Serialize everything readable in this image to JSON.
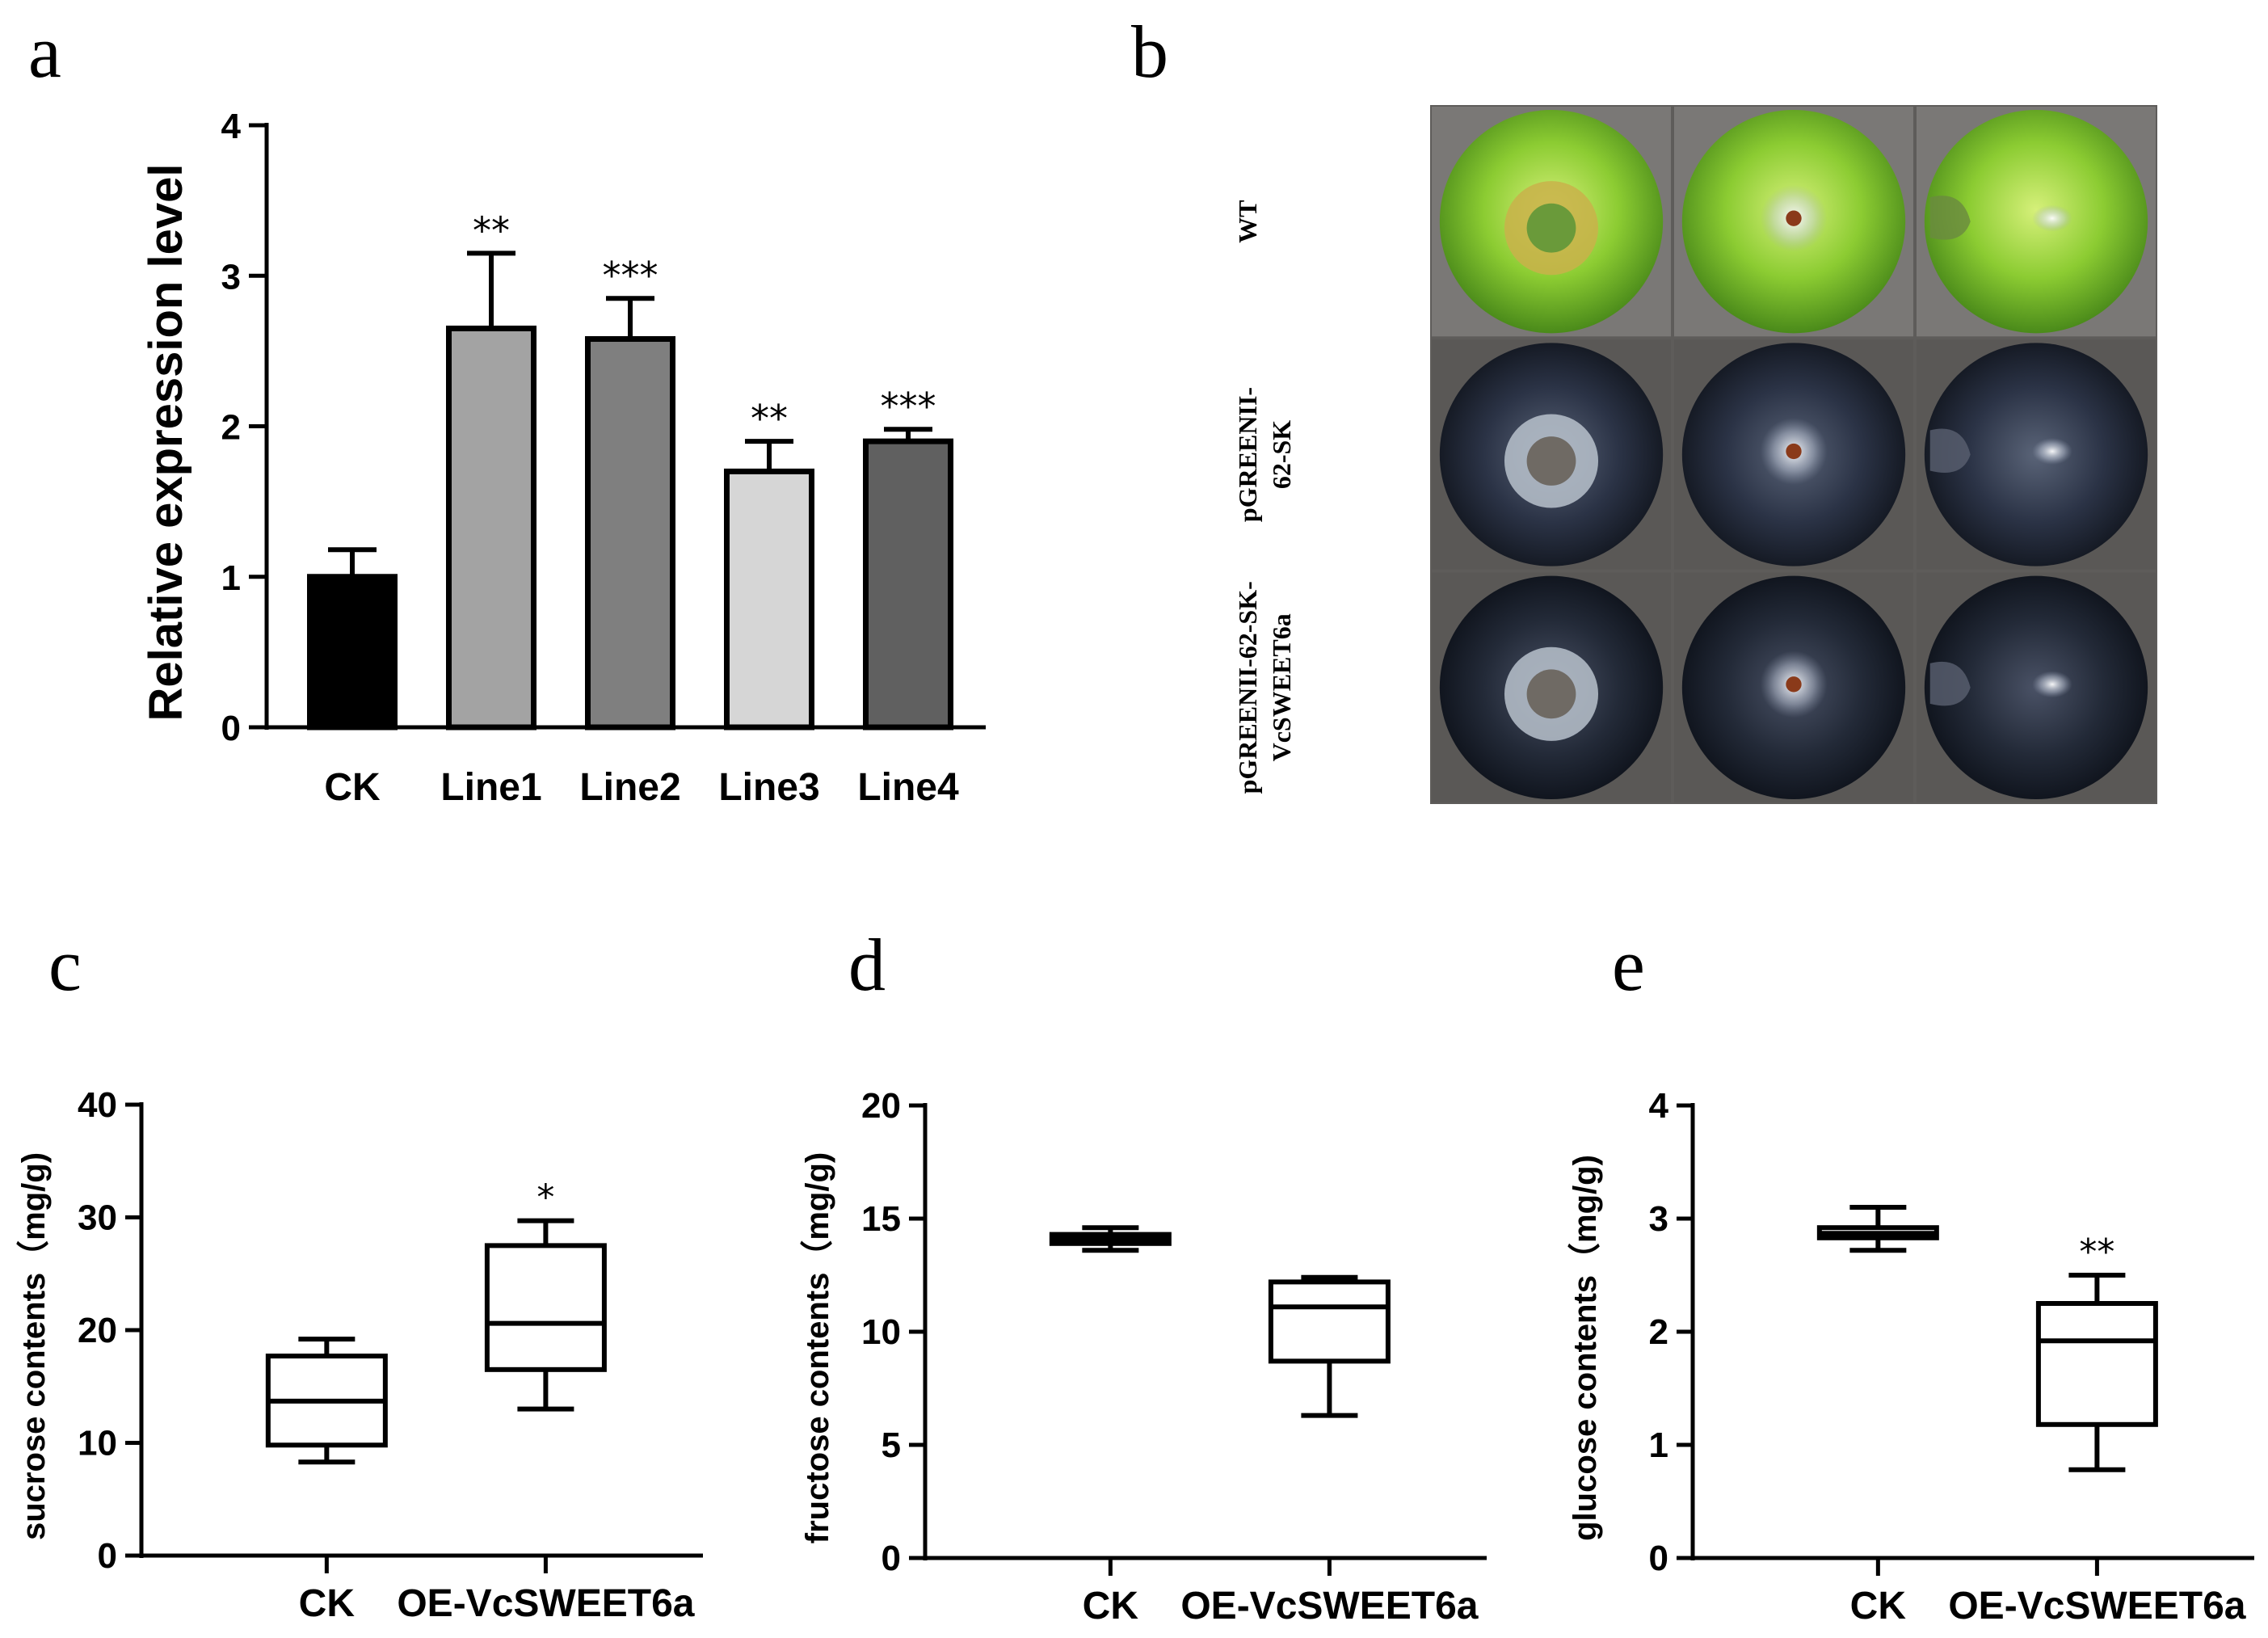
{
  "panels": {
    "a": "a",
    "b": "b",
    "c": "c",
    "d": "d",
    "e": "e"
  },
  "chart_data": [
    {
      "panel": "a",
      "type": "bar",
      "title": "",
      "xlabel": "",
      "ylabel": "Relative expression level",
      "ylim": [
        0,
        4
      ],
      "yticks": [
        0,
        1,
        2,
        3,
        4
      ],
      "categories": [
        "CK",
        "Line1",
        "Line2",
        "Line3",
        "Line4"
      ],
      "values": [
        1.0,
        2.65,
        2.58,
        1.7,
        1.9
      ],
      "errors": [
        0.18,
        0.5,
        0.27,
        0.2,
        0.08
      ],
      "significance": [
        "",
        "**",
        "***",
        "**",
        "***"
      ],
      "colors": [
        "#000000",
        "#a3a3a3",
        "#7f7f7f",
        "#d6d6d6",
        "#606060"
      ]
    },
    {
      "panel": "c",
      "type": "box",
      "title": "",
      "xlabel": "",
      "ylabel": "sucrose contents（mg/g)",
      "ylim": [
        0,
        40
      ],
      "yticks": [
        0,
        10,
        20,
        30,
        40
      ],
      "categories": [
        "CK",
        "OE-VcSWEET6a"
      ],
      "boxes": [
        {
          "min": 8.3,
          "q1": 9.8,
          "median": 13.7,
          "q3": 17.7,
          "max": 19.2
        },
        {
          "min": 13.0,
          "q1": 16.5,
          "median": 20.6,
          "q3": 27.5,
          "max": 29.7
        }
      ],
      "significance": [
        "",
        "*"
      ]
    },
    {
      "panel": "d",
      "type": "box",
      "title": "",
      "xlabel": "",
      "ylabel": "fructose contents（mg/g)",
      "ylim": [
        0,
        20
      ],
      "yticks": [
        0,
        5,
        10,
        15,
        20
      ],
      "categories": [
        "CK",
        "OE-VcSWEET6a"
      ],
      "boxes": [
        {
          "min": 13.6,
          "q1": 13.9,
          "median": 14.1,
          "q3": 14.3,
          "max": 14.6
        },
        {
          "min": 6.3,
          "q1": 8.7,
          "median": 11.1,
          "q3": 12.2,
          "max": 12.4
        }
      ],
      "significance": [
        "",
        ""
      ]
    },
    {
      "panel": "e",
      "type": "box",
      "title": "",
      "xlabel": "",
      "ylabel": "glucose contents（mg/g)",
      "ylim": [
        0,
        4
      ],
      "yticks": [
        0,
        1,
        2,
        3,
        4
      ],
      "categories": [
        "CK",
        "OE-VcSWEET6a"
      ],
      "boxes": [
        {
          "min": 2.72,
          "q1": 2.83,
          "median": 2.87,
          "q3": 2.92,
          "max": 3.1
        },
        {
          "min": 0.78,
          "q1": 1.18,
          "median": 1.92,
          "q3": 2.25,
          "max": 2.5
        }
      ],
      "significance": [
        "",
        "**"
      ]
    }
  ],
  "photo_panel": {
    "row_labels": [
      {
        "lines": [
          "WT"
        ]
      },
      {
        "lines": [
          "pGREENII-",
          "62-SK"
        ]
      },
      {
        "lines": [
          "pGREENII-62-SK-",
          "VcSWEET6a"
        ]
      }
    ],
    "columns": 3,
    "rows": [
      {
        "fruit_color": "#7fc32e",
        "fruit_dark": "#4e8a18"
      },
      {
        "fruit_color": "#2a3346",
        "fruit_dark": "#141a26"
      },
      {
        "fruit_color": "#232a38",
        "fruit_dark": "#10141d"
      }
    ],
    "background": "#5e5c5a"
  }
}
